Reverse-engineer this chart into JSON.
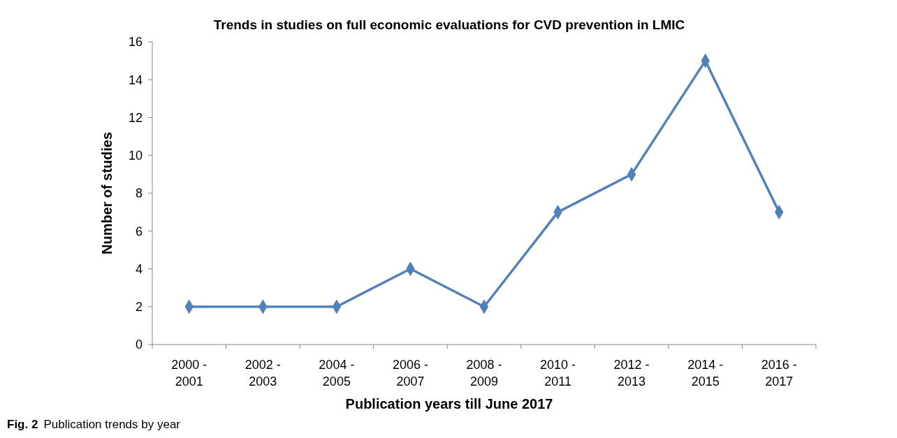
{
  "chart_data": {
    "type": "line",
    "title": "Trends in studies on full economic evaluations for CVD prevention in LMIC",
    "xlabel": "Publication years till June 2017",
    "ylabel": "Number of studies",
    "categories": [
      "2000 - 2001",
      "2002 - 2003",
      "2004 - 2005",
      "2006 - 2007",
      "2008 - 2009",
      "2010 - 2011",
      "2012 - 2013",
      "2014 - 2015",
      "2016 - 2017"
    ],
    "series": [
      {
        "color": "#4f81bd",
        "values": [
          2,
          2,
          2,
          4,
          2,
          7,
          9,
          15,
          7
        ]
      }
    ],
    "ylim": [
      0,
      16
    ],
    "yticks": [
      0,
      2,
      4,
      6,
      8,
      10,
      12,
      14,
      16
    ],
    "grid": false,
    "marker": "diamond",
    "line_style": "solid",
    "annotations": [
      "Fig. 2 Publication trends by year"
    ]
  }
}
